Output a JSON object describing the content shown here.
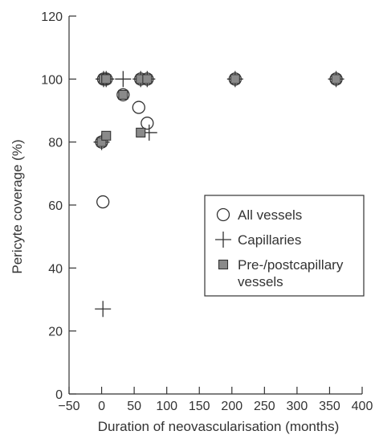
{
  "chart_data": {
    "type": "scatter",
    "xlabel": "Duration of neovascularisation (months)",
    "ylabel": "Pericyte coverage (%)",
    "xlim": [
      -50,
      400
    ],
    "ylim": [
      0,
      120
    ],
    "xticks": [
      -50,
      0,
      50,
      100,
      150,
      200,
      250,
      300,
      350,
      400
    ],
    "xtick_labels": [
      "−50",
      "0",
      "50",
      "100",
      "150",
      "200",
      "250",
      "300",
      "350",
      "400"
    ],
    "yticks": [
      0,
      20,
      40,
      60,
      80,
      100,
      120
    ],
    "ytick_labels": [
      "0",
      "20",
      "40",
      "60",
      "80",
      "100",
      "120"
    ],
    "grid": false,
    "legend_position": "middle-right",
    "series": [
      {
        "name": "All vessels",
        "marker": "open-circle",
        "points": [
          [
            0,
            80
          ],
          [
            2,
            61
          ],
          [
            3,
            100
          ],
          [
            7,
            100
          ],
          [
            33,
            95
          ],
          [
            57,
            91
          ],
          [
            60,
            100
          ],
          [
            70,
            86
          ],
          [
            70,
            100
          ],
          [
            205,
            100
          ],
          [
            360,
            100
          ]
        ]
      },
      {
        "name": "Capillaries",
        "marker": "plus",
        "points": [
          [
            0,
            80
          ],
          [
            2,
            27
          ],
          [
            3,
            100
          ],
          [
            7,
            100
          ],
          [
            33,
            100
          ],
          [
            60,
            100
          ],
          [
            70,
            100
          ],
          [
            73,
            83
          ],
          [
            205,
            100
          ],
          [
            360,
            100
          ]
        ]
      },
      {
        "name": "Pre-/postcapillary\nvessels",
        "marker": "gray-square",
        "points": [
          [
            0,
            80
          ],
          [
            3,
            100
          ],
          [
            7,
            100
          ],
          [
            7,
            82
          ],
          [
            33,
            95
          ],
          [
            60,
            100
          ],
          [
            60,
            83
          ],
          [
            70,
            100
          ],
          [
            205,
            100
          ],
          [
            360,
            100
          ]
        ]
      }
    ],
    "colors": {
      "marker_edge": "#333333",
      "square_fill": "#8a8a8a",
      "axis": "#333333"
    }
  }
}
